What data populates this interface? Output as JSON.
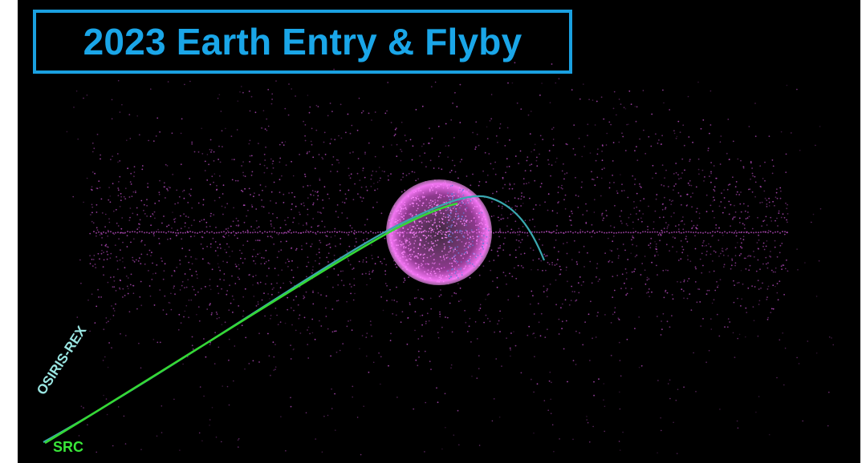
{
  "title": "2023 Earth Entry & Flyby",
  "labels": {
    "spacecraft": "OSIRIS-REX",
    "capsule": "SRC"
  },
  "colors": {
    "background": "#000000",
    "title": "#1aa6e8",
    "title_border": "#1aa0e0",
    "earth_glow": "#ff66ff",
    "debris_points": "#c050c8",
    "spacecraft_path": "#3aa8b0",
    "src_path": "#35d835",
    "spacecraft_label": "#9ae6e2",
    "src_label": "#39e639"
  },
  "icons": {
    "earth": "magenta-sphere",
    "debris_field": "magenta-point-cloud"
  }
}
